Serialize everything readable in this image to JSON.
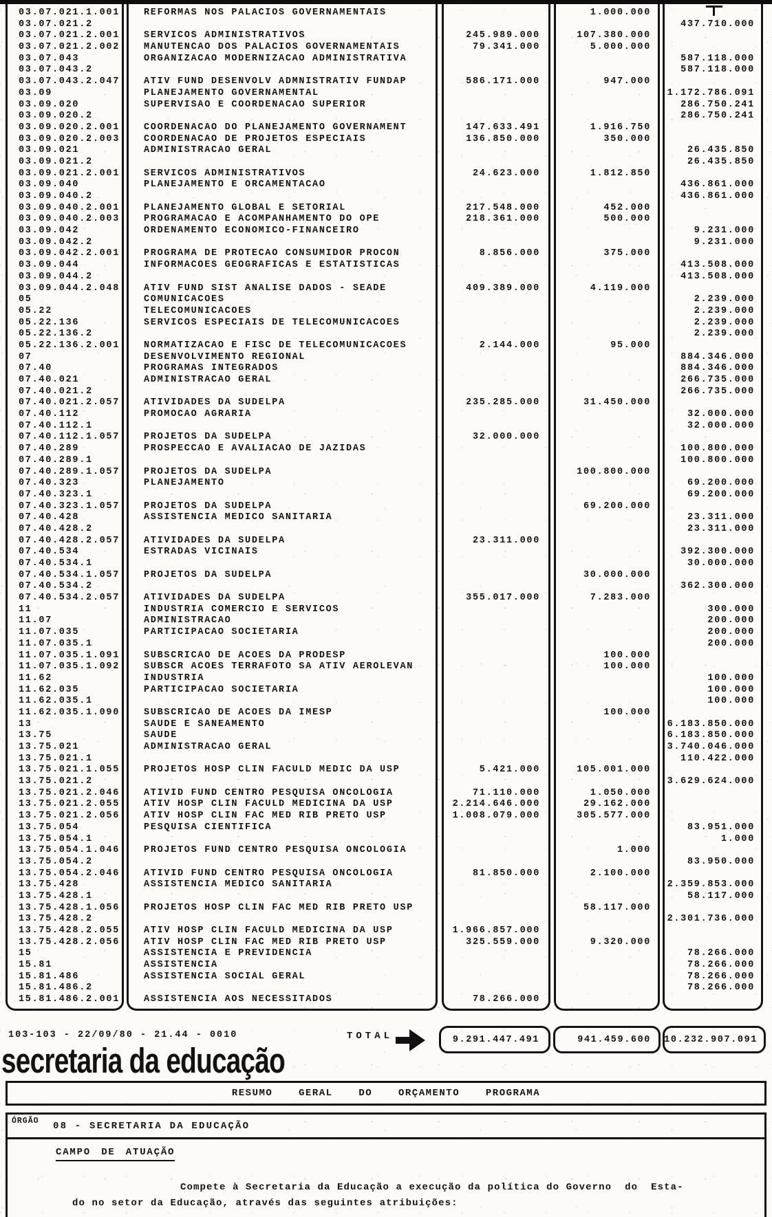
{
  "colors": {
    "ink": "#121212",
    "paper": "#fcfbf7"
  },
  "table": {
    "rows": [
      [
        "03.07.021.1.001",
        "REFORMAS NOS PALACIOS GOVERNAMENTAIS",
        "",
        "1.000.000",
        ""
      ],
      [
        "03.07.021.2",
        "",
        "",
        "",
        "437.710.000"
      ],
      [
        "03.07.021.2.001",
        "SERVICOS ADMINISTRATIVOS",
        "245.989.000",
        "107.380.000",
        ""
      ],
      [
        "03.07.021.2.002",
        "MANUTENCAO DOS PALACIOS GOVERNAMENTAIS",
        "79.341.000",
        "5.000.000",
        ""
      ],
      [
        "03.07.043",
        "ORGANIZACAO MODERNIZACAO ADMINISTRATIVA",
        "",
        "",
        "587.118.000"
      ],
      [
        "03.07.043.2",
        "",
        "",
        "",
        "587.118.000"
      ],
      [
        "03.07.043.2.047",
        "ATIV FUND DESENVOLV ADMNISTRATIV FUNDAP",
        "586.171.000",
        "947.000",
        ""
      ],
      [
        "03.09",
        "PLANEJAMENTO GOVERNAMENTAL",
        "",
        "",
        "1.172.786.091"
      ],
      [
        "03.09.020",
        "SUPERVISAO E COORDENACAO SUPERIOR",
        "",
        "",
        "286.750.241"
      ],
      [
        "03.09.020.2",
        "",
        "",
        "",
        "286.750.241"
      ],
      [
        "03.09.020.2.001",
        "COORDENACAO DO PLANEJAMENTO GOVERNAMENT",
        "147.633.491",
        "1.916.750",
        ""
      ],
      [
        "03.09.020.2.003",
        "COORDENACAO DE PROJETOS ESPECIAIS",
        "136.850.000",
        "350.000",
        ""
      ],
      [
        "03.09.021",
        "ADMINISTRACAO GERAL",
        "",
        "",
        "26.435.850"
      ],
      [
        "03.09.021.2",
        "",
        "",
        "",
        "26.435.850"
      ],
      [
        "03.09.021.2.001",
        "SERVICOS ADMINISTRATIVOS",
        "24.623.000",
        "1.812.850",
        ""
      ],
      [
        "03.09.040",
        "PLANEJAMENTO E ORCAMENTACAO",
        "",
        "",
        "436.861.000"
      ],
      [
        "03.09.040.2",
        "",
        "",
        "",
        "436.861.000"
      ],
      [
        "03.09.040.2.001",
        "PLANEJAMENTO GLOBAL E SETORIAL",
        "217.548.000",
        "452.000",
        ""
      ],
      [
        "03.09.040.2.003",
        "PROGRAMACAO E ACOMPANHAMENTO DO OPE",
        "218.361.000",
        "500.000",
        ""
      ],
      [
        "03.09.042",
        "ORDENAMENTO ECONOMICO-FINANCEIRO",
        "",
        "",
        "9.231.000"
      ],
      [
        "03.09.042.2",
        "",
        "",
        "",
        "9.231.000"
      ],
      [
        "03.09.042.2.001",
        "PROGRAMA DE PROTECAO CONSUMIDOR PROCON",
        "8.856.000",
        "375.000",
        ""
      ],
      [
        "03.09.044",
        "INFORMACOES GEOGRAFICAS E ESTATISTICAS",
        "",
        "",
        "413.508.000"
      ],
      [
        "03.09.044.2",
        "",
        "",
        "",
        "413.508.000"
      ],
      [
        "03.09.044.2.048",
        "ATIV FUND SIST ANALISE DADOS - SEADE",
        "409.389.000",
        "4.119.000",
        ""
      ],
      [
        "05",
        "COMUNICACOES",
        "",
        "",
        "2.239.000"
      ],
      [
        "05.22",
        "TELECOMUNICACOES",
        "",
        "",
        "2.239.000"
      ],
      [
        "05.22.136",
        "SERVICOS ESPECIAIS DE TELECOMUNICACOES",
        "",
        "",
        "2.239.000"
      ],
      [
        "05.22.136.2",
        "",
        "",
        "",
        "2.239.000"
      ],
      [
        "05.22.136.2.001",
        "NORMATIZACAO E FISC DE TELECOMUNICACOES",
        "2.144.000",
        "95.000",
        ""
      ],
      [
        "07",
        "DESENVOLVIMENTO REGIONAL",
        "",
        "",
        "884.346.000"
      ],
      [
        "07.40",
        "PROGRAMAS INTEGRADOS",
        "",
        "",
        "884.346.000"
      ],
      [
        "07.40.021",
        "ADMINISTRACAO GERAL",
        "",
        "",
        "266.735.000"
      ],
      [
        "07.40.021.2",
        "",
        "",
        "",
        "266.735.000"
      ],
      [
        "07.40.021.2.057",
        "ATIVIDADES DA SUDELPA",
        "235.285.000",
        "31.450.000",
        ""
      ],
      [
        "07.40.112",
        "PROMOCAO AGRARIA",
        "",
        "",
        "32.000.000"
      ],
      [
        "07.40.112.1",
        "",
        "",
        "",
        "32.000.000"
      ],
      [
        "07.40.112.1.057",
        "PROJETOS DA SUDELPA",
        "32.000.000",
        "",
        ""
      ],
      [
        "07.40.289",
        "PROSPECCAO E AVALIACAO DE JAZIDAS",
        "",
        "",
        "100.800.000"
      ],
      [
        "07.40.289.1",
        "",
        "",
        "",
        "100.800.000"
      ],
      [
        "07.40.289.1.057",
        "PROJETOS DA SUDELPA",
        "",
        "100.800.000",
        ""
      ],
      [
        "07.40.323",
        "PLANEJAMENTO",
        "",
        "",
        "69.200.000"
      ],
      [
        "07.40.323.1",
        "",
        "",
        "",
        "69.200.000"
      ],
      [
        "07.40.323.1.057",
        "PROJETOS DA SUDELPA",
        "",
        "69.200.000",
        ""
      ],
      [
        "07.40.428",
        "ASSISTENCIA MEDICO SANITARIA",
        "",
        "",
        "23.311.000"
      ],
      [
        "07.40.428.2",
        "",
        "",
        "",
        "23.311.000"
      ],
      [
        "07.40.428.2.057",
        "ATIVIDADES DA SUDELPA",
        "23.311.000",
        "",
        ""
      ],
      [
        "07.40.534",
        "ESTRADAS VICINAIS",
        "",
        "",
        "392.300.000"
      ],
      [
        "07.40.534.1",
        "",
        "",
        "",
        "30.000.000"
      ],
      [
        "07.40.534.1.057",
        "PROJETOS DA SUDELPA",
        "",
        "30.000.000",
        ""
      ],
      [
        "07.40.534.2",
        "",
        "",
        "",
        "362.300.000"
      ],
      [
        "07.40.534.2.057",
        "ATIVIDADES DA SUDELPA",
        "355.017.000",
        "7.283.000",
        ""
      ],
      [
        "11",
        "INDUSTRIA COMERCIO E SERVICOS",
        "",
        "",
        "300.000"
      ],
      [
        "11.07",
        "ADMINISTRACAO",
        "",
        "",
        "200.000"
      ],
      [
        "11.07.035",
        "PARTICIPACAO SOCIETARIA",
        "",
        "",
        "200.000"
      ],
      [
        "11.07.035.1",
        "",
        "",
        "",
        "200.000"
      ],
      [
        "11.07.035.1.091",
        "SUBSCRICAO DE ACOES DA PRODESP",
        "",
        "100.000",
        ""
      ],
      [
        "11.07.035.1.092",
        "SUBSCR ACOES TERRAFOTO SA ATIV AEROLEVAN",
        "",
        "100.000",
        ""
      ],
      [
        "11.62",
        "INDUSTRIA",
        "",
        "",
        "100.000"
      ],
      [
        "11.62.035",
        "PARTICIPACAO SOCIETARIA",
        "",
        "",
        "100.000"
      ],
      [
        "11.62.035.1",
        "",
        "",
        "",
        "100.000"
      ],
      [
        "11.62.035.1.090",
        "SUBSCRICAO DE ACOES DA IMESP",
        "",
        "100.000",
        ""
      ],
      [
        "13",
        "SAUDE E SANEAMENTO",
        "",
        "",
        "6.183.850.000"
      ],
      [
        "13.75",
        "SAUDE",
        "",
        "",
        "6.183.850.000"
      ],
      [
        "13.75.021",
        "ADMINISTRACAO GERAL",
        "",
        "",
        "3.740.046.000"
      ],
      [
        "13.75.021.1",
        "",
        "",
        "",
        "110.422.000"
      ],
      [
        "13.75.021.1.055",
        "PROJETOS HOSP CLIN FACULD MEDIC DA USP",
        "5.421.000",
        "105.001.000",
        ""
      ],
      [
        "13.75.021.2",
        "",
        "",
        "",
        "3.629.624.000"
      ],
      [
        "13.75.021.2.046",
        "ATIVID FUND CENTRO PESQUISA ONCOLOGIA",
        "71.110.000",
        "1.050.000",
        ""
      ],
      [
        "13.75.021.2.055",
        "ATIV HOSP CLIN FACULD MEDICINA DA USP",
        "2.214.646.000",
        "29.162.000",
        ""
      ],
      [
        "13.75.021.2.056",
        "ATIV HOSP CLIN FAC MED RIB PRETO USP",
        "1.008.079.000",
        "305.577.000",
        ""
      ],
      [
        "13.75.054",
        "PESQUISA CIENTIFICA",
        "",
        "",
        "83.951.000"
      ],
      [
        "13.75.054.1",
        "",
        "",
        "",
        "1.000"
      ],
      [
        "13.75.054.1.046",
        "PROJETOS FUND CENTRO PESQUISA ONCOLOGIA",
        "",
        "1.000",
        ""
      ],
      [
        "13.75.054.2",
        "",
        "",
        "",
        "83.950.000"
      ],
      [
        "13.75.054.2.046",
        "ATIVID FUND CENTRO PESQUISA ONCOLOGIA",
        "81.850.000",
        "2.100.000",
        ""
      ],
      [
        "13.75.428",
        "ASSISTENCIA MEDICO SANITARIA",
        "",
        "",
        "2.359.853.000"
      ],
      [
        "13.75.428.1",
        "",
        "",
        "",
        "58.117.000"
      ],
      [
        "13.75.428.1.056",
        "PROJETOS HOSP CLIN FAC MED RIB PRETO USP",
        "",
        "58.117.000",
        ""
      ],
      [
        "13.75.428.2",
        "",
        "",
        "",
        "2.301.736.000"
      ],
      [
        "13.75.428.2.055",
        "ATIV HOSP CLIN FACULD MEDICINA DA USP",
        "1.966.857.000",
        "",
        ""
      ],
      [
        "13.75.428.2.056",
        "ATIV HOSP CLIN FAC MED RIB PRETO USP",
        "325.559.000",
        "9.320.000",
        ""
      ],
      [
        "15",
        "ASSISTENCIA E PREVIDENCIA",
        "",
        "",
        "78.266.000"
      ],
      [
        "15.81",
        "ASSISTENCIA",
        "",
        "",
        "78.266.000"
      ],
      [
        "15.81.486",
        "ASSISTENCIA SOCIAL GERAL",
        "",
        "",
        "78.266.000"
      ],
      [
        "15.81.486.2",
        "",
        "",
        "",
        "78.266.000"
      ],
      [
        "15.81.486.2.001",
        "ASSISTENCIA AOS NECESSITADOS",
        "78.266.000",
        "",
        ""
      ]
    ]
  },
  "footer_line": "103-103 - 22/09/80 - 21.44 - 0010",
  "total": {
    "label": "TOTAL",
    "arrow_icon": "right-arrow",
    "values": [
      "9.291.447.491",
      "941.459.600",
      "10.232.907.091"
    ]
  },
  "heading": "secretaria da educação",
  "resumo_title": "RESUMO  GERAL  DO  ORÇAMENTO  PROGRAMA",
  "orgao": {
    "label": "ÓRGÃO",
    "value": "08 - SECRETARIA DA EDUCAÇÃO"
  },
  "campo_title": "CAMPO DE ATUAÇÃO",
  "paragraph": {
    "line1": "Compete à Secretaria da Educação a execução da política do Governo  do  Esta-",
    "line2": "do no setor da Educação, através das seguintes atribuições:"
  }
}
